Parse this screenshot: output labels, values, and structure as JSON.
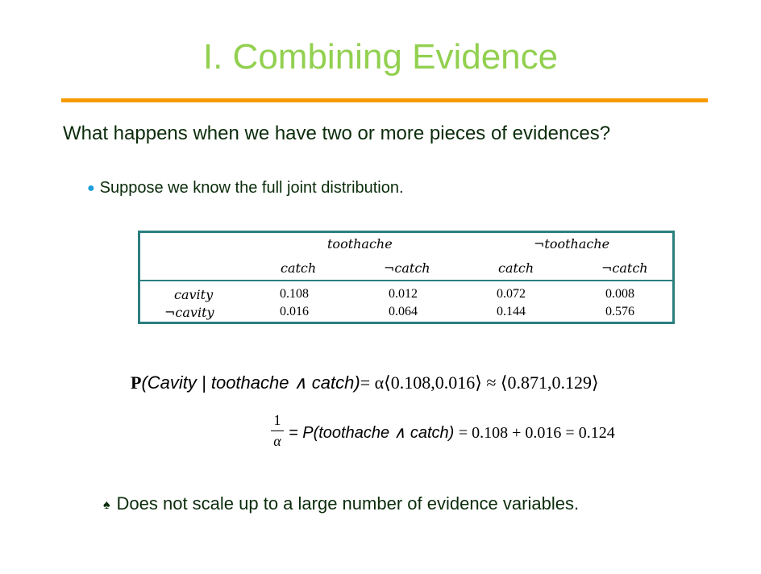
{
  "slide": {
    "title": "I. Combining Evidence",
    "question": "What happens when we have two or more pieces of evidences?",
    "bullet": "Suppose we know the full joint distribution.",
    "note": "Does not scale up to a large number of evidence variables."
  },
  "table": {
    "group_headers": [
      "toothache",
      "¬toothache"
    ],
    "column_headers": [
      "catch",
      "¬catch",
      "catch",
      "¬catch"
    ],
    "rows": [
      {
        "label": "cavity",
        "values": [
          "0.108",
          "0.012",
          "0.072",
          "0.008"
        ]
      },
      {
        "label": "¬cavity",
        "values": [
          "0.016",
          "0.064",
          "0.144",
          "0.576"
        ]
      }
    ]
  },
  "equation1": {
    "bold_p": "P",
    "lhs": "(Cavity | toothache ∧ catch)",
    "rhs": "= α⟨0.108,0.016⟩ ≈ ⟨0.871,0.129⟩"
  },
  "equation2": {
    "num": "1",
    "den": "α",
    "lhs": "= P(toothache ∧ catch)",
    "rhs": "= 0.108 + 0.016 = 0.124"
  },
  "colors": {
    "title": "#92d050",
    "rule": "#f79a00",
    "table_border": "#2a7f80",
    "text": "#0b2c0b",
    "bullet_dot": "#1a9fd8"
  },
  "icons": [
    "bullet-dot-icon",
    "spade-icon"
  ]
}
